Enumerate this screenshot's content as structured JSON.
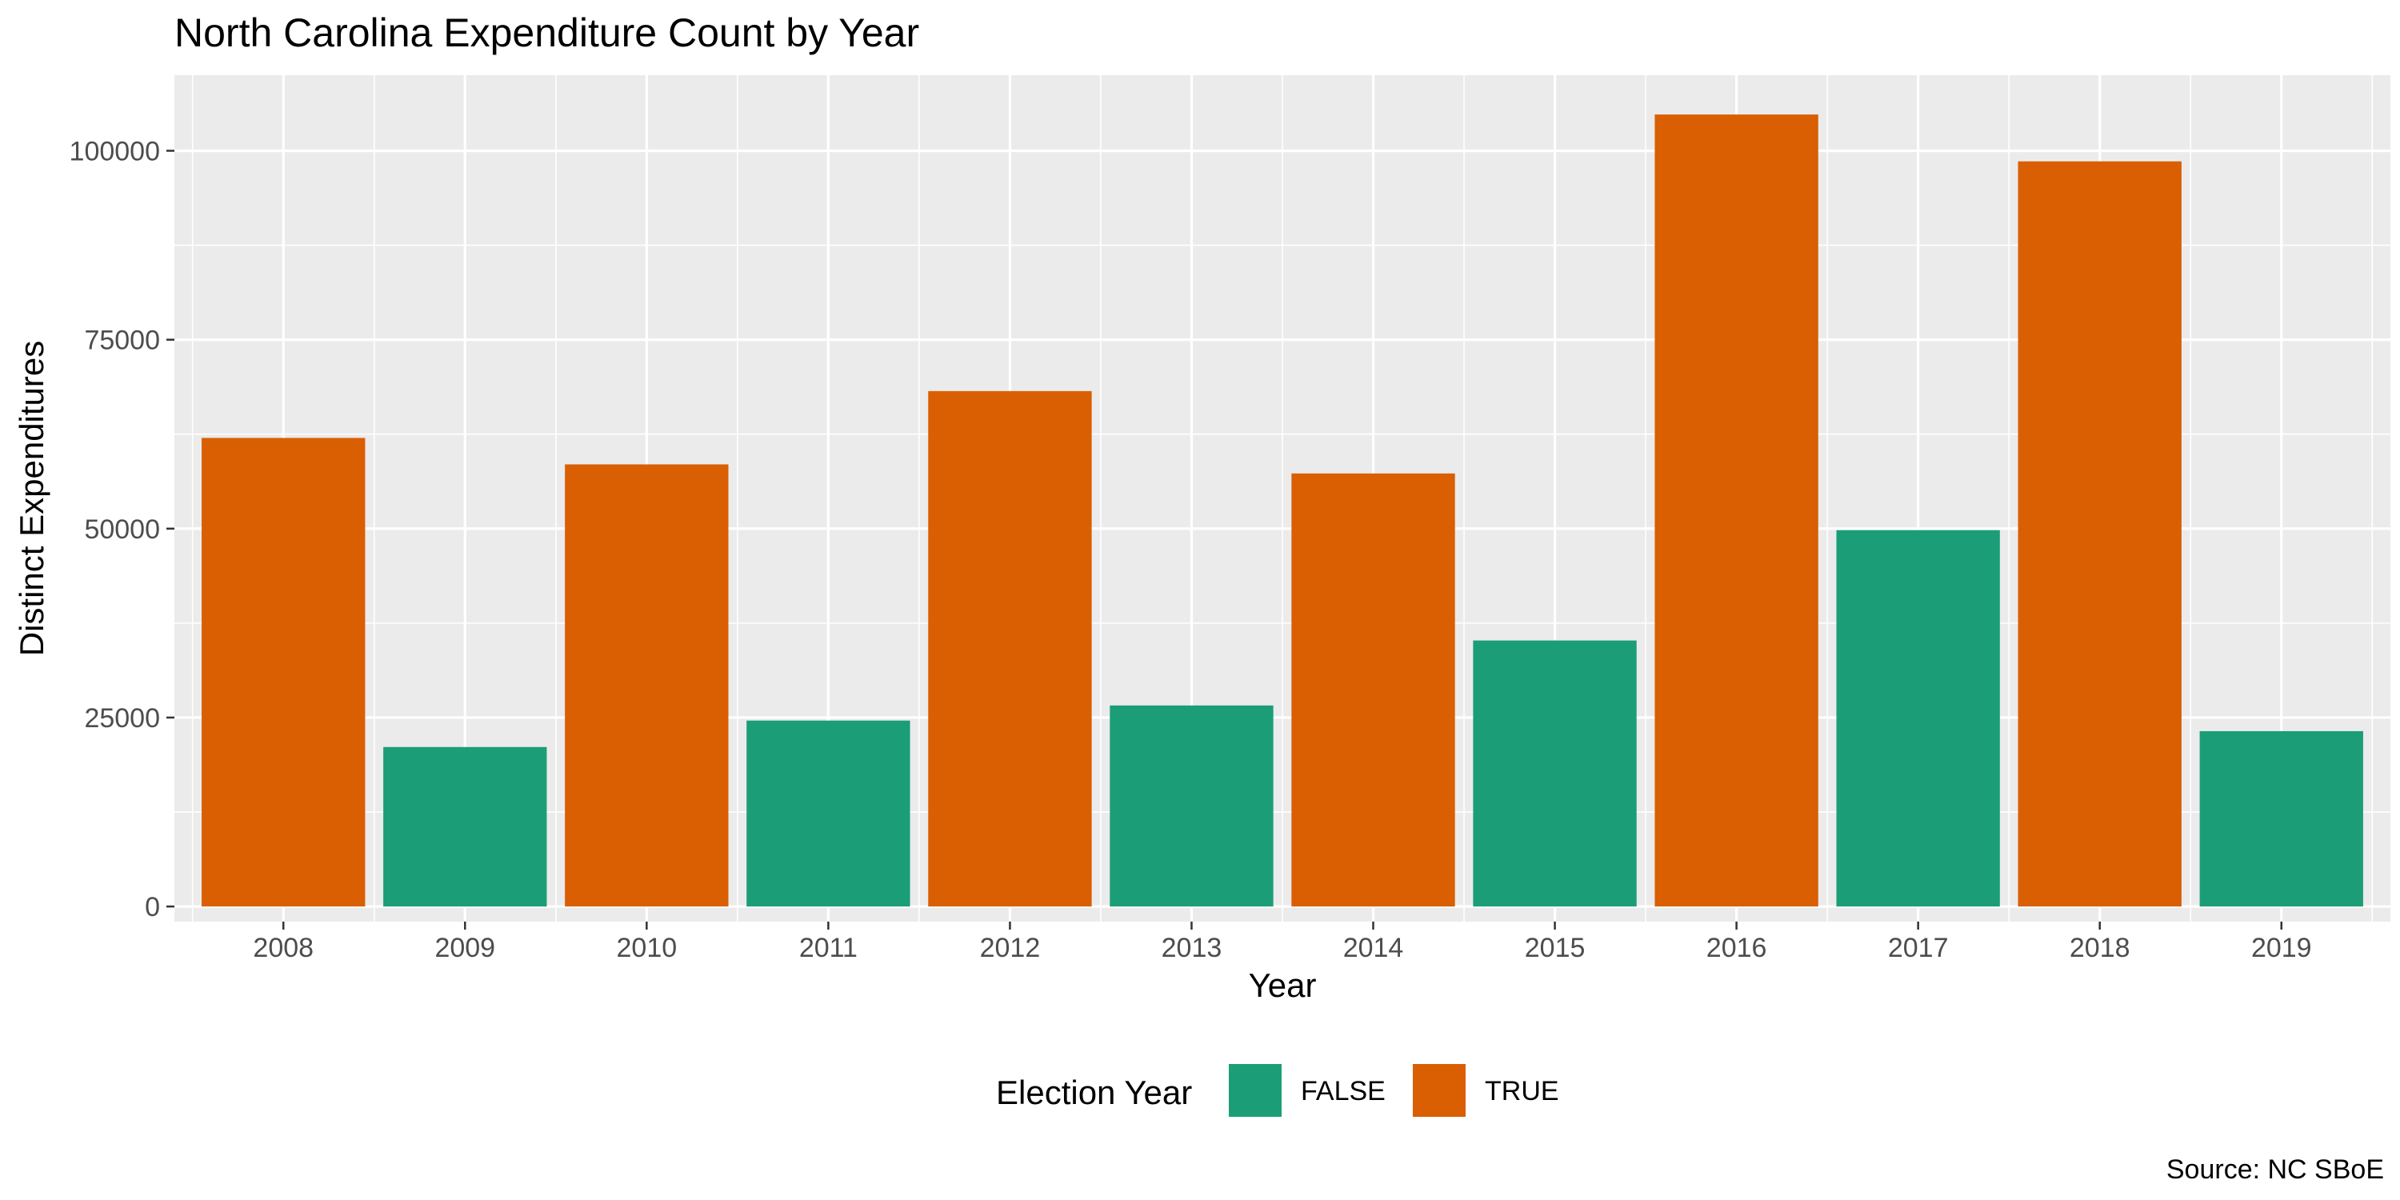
{
  "chart_data": {
    "type": "bar",
    "title": "North Carolina Expenditure Count by Year",
    "xlabel": "Year",
    "ylabel": "Distinct Expenditures",
    "caption": "Source: NC SBoE",
    "categories": [
      "2008",
      "2009",
      "2010",
      "2011",
      "2012",
      "2013",
      "2014",
      "2015",
      "2016",
      "2017",
      "2018",
      "2019"
    ],
    "values": [
      62000,
      21100,
      58500,
      24600,
      68200,
      26600,
      57300,
      35200,
      104800,
      49800,
      98600,
      23200
    ],
    "election_year": [
      true,
      false,
      true,
      false,
      true,
      false,
      true,
      false,
      true,
      false,
      true,
      false
    ],
    "ylim": [
      -2000,
      110000
    ],
    "yticks": [
      0,
      25000,
      50000,
      75000,
      100000
    ],
    "ytick_labels": [
      "0",
      "25000",
      "50000",
      "75000",
      "100000"
    ],
    "grid": true,
    "legend": {
      "title": "Election Year",
      "placement": "bottom",
      "entries": [
        {
          "label": "FALSE",
          "color": "#1b9e77"
        },
        {
          "label": "TRUE",
          "color": "#d95f02"
        }
      ]
    },
    "colors": {
      "false": "#1b9e77",
      "true": "#d95f02",
      "panel": "#ebebeb",
      "grid": "#ffffff"
    }
  }
}
